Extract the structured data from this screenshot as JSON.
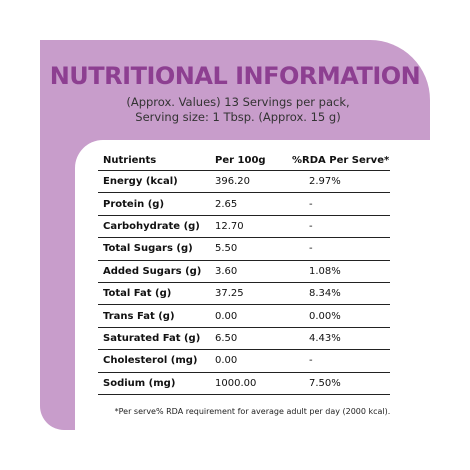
{
  "title": "NUTRITIONAL INFORMATION",
  "subtitle": [
    "(Approx. Values) 13 Servings per pack,",
    "Serving size: 1 Tbsp. (Approx. 15 g)"
  ],
  "table": {
    "header": [
      "Nutrients",
      "Per 100g",
      "%RDA Per Serve*"
    ],
    "rows": [
      [
        "Energy (kcal)",
        "396.20",
        "2.97%"
      ],
      [
        "Protein (g)",
        "2.65",
        "-"
      ],
      [
        "Carbohydrate (g)",
        "12.70",
        "-"
      ],
      [
        "Total Sugars (g)",
        "5.50",
        "-"
      ],
      [
        "Added Sugars (g)",
        "3.60",
        "1.08%"
      ],
      [
        "Total Fat (g)",
        "37.25",
        "8.34%"
      ],
      [
        "Trans Fat (g)",
        "0.00",
        "0.00%"
      ],
      [
        "Saturated Fat (g)",
        "6.50",
        "4.43%"
      ],
      [
        "Cholesterol (mg)",
        "0.00",
        "-"
      ],
      [
        "Sodium (mg)",
        "1000.00",
        "7.50%"
      ]
    ]
  },
  "footnote": "*Per serve% RDA requirement for average adult per day (2000 kcal)."
}
